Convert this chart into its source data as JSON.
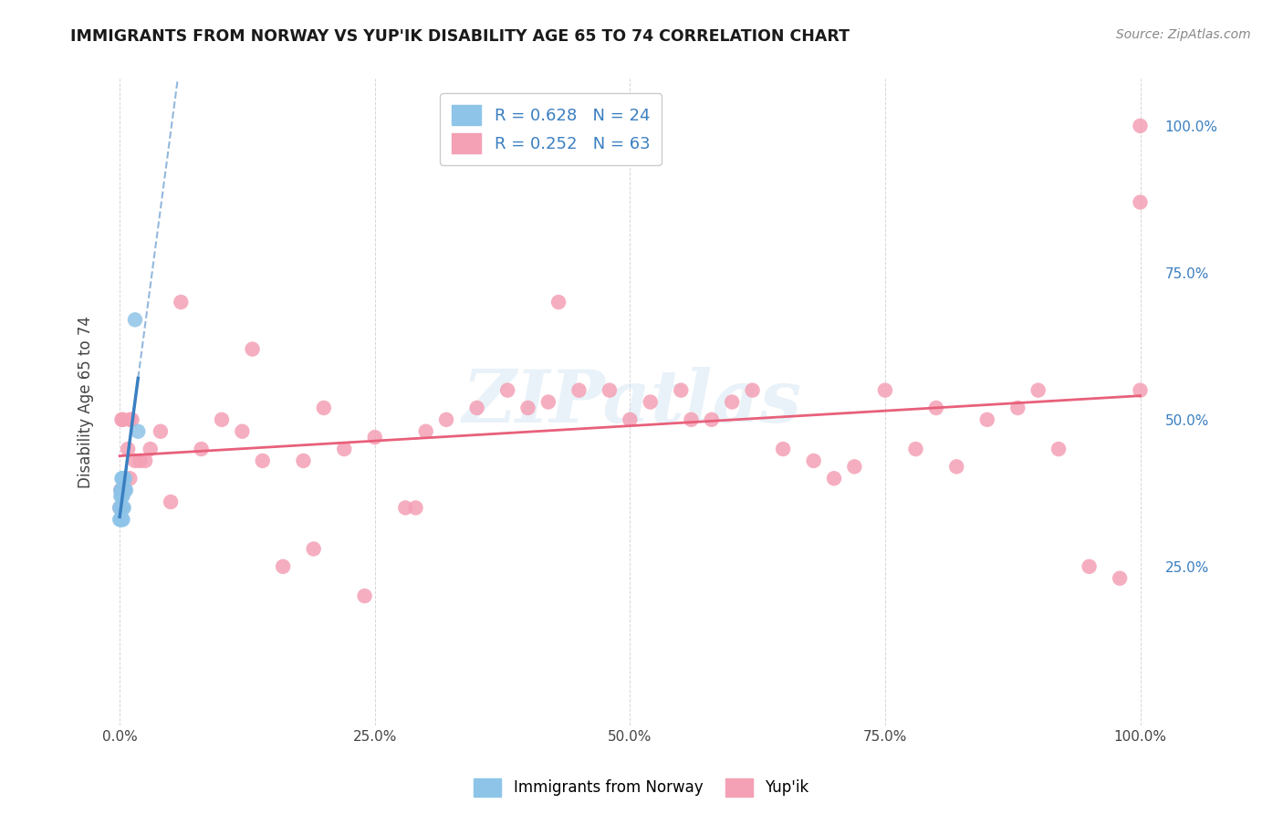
{
  "title": "IMMIGRANTS FROM NORWAY VS YUP'IK DISABILITY AGE 65 TO 74 CORRELATION CHART",
  "source": "Source: ZipAtlas.com",
  "ylabel": "Disability Age 65 to 74",
  "legend_label1": "Immigrants from Norway",
  "legend_label2": "Yup'ik",
  "R1": 0.628,
  "N1": 24,
  "R2": 0.252,
  "N2": 63,
  "color_norway": "#8ec4e8",
  "color_yupik": "#f4a0b5",
  "trendline_norway": "#3a7fc1",
  "trendline_yupik": "#e8607a",
  "norway_x": [
    0.0,
    0.0,
    0.001,
    0.001,
    0.001,
    0.001,
    0.002,
    0.002,
    0.002,
    0.002,
    0.002,
    0.003,
    0.003,
    0.003,
    0.003,
    0.003,
    0.004,
    0.004,
    0.004,
    0.005,
    0.005,
    0.006,
    0.015,
    0.018
  ],
  "norway_y": [
    0.33,
    0.35,
    0.33,
    0.35,
    0.37,
    0.38,
    0.33,
    0.35,
    0.37,
    0.38,
    0.4,
    0.33,
    0.35,
    0.37,
    0.38,
    0.4,
    0.35,
    0.38,
    0.4,
    0.38,
    0.4,
    0.38,
    0.67,
    0.48
  ],
  "yupik_x": [
    0.0,
    0.001,
    0.002,
    0.003,
    0.005,
    0.008,
    0.01,
    0.012,
    0.015,
    0.02,
    0.025,
    0.03,
    0.04,
    0.06,
    0.08,
    0.1,
    0.12,
    0.14,
    0.16,
    0.18,
    0.2,
    0.22,
    0.25,
    0.28,
    0.3,
    0.32,
    0.35,
    0.38,
    0.4,
    0.42,
    0.45,
    0.48,
    0.5,
    0.52,
    0.55,
    0.58,
    0.6,
    0.62,
    0.65,
    0.68,
    0.7,
    0.72,
    0.75,
    0.78,
    0.8,
    0.82,
    0.85,
    0.88,
    0.9,
    0.92,
    0.95,
    0.98,
    1.0,
    1.0,
    1.0,
    0.01,
    0.05,
    0.13,
    0.19,
    0.24,
    0.29,
    0.43,
    0.56
  ],
  "yupik_y": [
    0.35,
    0.38,
    0.5,
    0.5,
    0.38,
    0.45,
    0.4,
    0.5,
    0.43,
    0.43,
    0.43,
    0.45,
    0.48,
    0.7,
    0.45,
    0.5,
    0.48,
    0.43,
    0.25,
    0.43,
    0.52,
    0.45,
    0.47,
    0.35,
    0.48,
    0.5,
    0.52,
    0.55,
    0.52,
    0.53,
    0.55,
    0.55,
    0.5,
    0.53,
    0.55,
    0.5,
    0.53,
    0.55,
    0.45,
    0.43,
    0.4,
    0.42,
    0.55,
    0.45,
    0.52,
    0.42,
    0.5,
    0.52,
    0.55,
    0.45,
    0.25,
    0.23,
    0.55,
    0.87,
    1.0,
    0.5,
    0.36,
    0.62,
    0.28,
    0.2,
    0.35,
    0.7,
    0.5
  ],
  "watermark": "ZIPatlas",
  "xlim": [
    0.0,
    1.0
  ],
  "ylim": [
    0.0,
    1.0
  ],
  "xticks": [
    0.0,
    0.25,
    0.5,
    0.75,
    1.0
  ],
  "xticklabels": [
    "0.0%",
    "25.0%",
    "50.0%",
    "75.0%",
    "100.0%"
  ],
  "yticks_right": [
    0.25,
    0.5,
    0.75,
    1.0
  ],
  "yticklabels_right": [
    "25.0%",
    "50.0%",
    "75.0%",
    "100.0%"
  ],
  "background_color": "#ffffff"
}
